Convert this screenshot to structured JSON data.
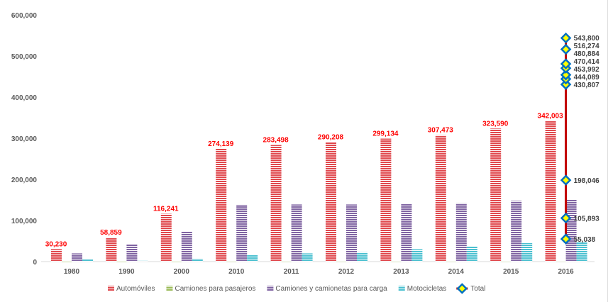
{
  "chart_data": {
    "type": "bar",
    "title": "",
    "xlabel": "",
    "ylabel": "",
    "ylim": [
      0,
      600000
    ],
    "yticks": [
      "0",
      "100,000",
      "200,000",
      "300,000",
      "400,000",
      "500,000",
      "600,000"
    ],
    "ytick_values": [
      0,
      100000,
      200000,
      300000,
      400000,
      500000,
      600000
    ],
    "categories": [
      "1980",
      "1990",
      "2000",
      "2010",
      "2011",
      "2012",
      "2013",
      "2014",
      "2015",
      "2016"
    ],
    "series": [
      {
        "name": "Automóviles",
        "color": "#e0484d",
        "values": [
          30230,
          58859,
          116241,
          274139,
          283498,
          290208,
          299134,
          307473,
          323590,
          342003
        ],
        "labels": [
          "30,230",
          "58,859",
          "116,241",
          "274,139",
          "283,498",
          "290,208",
          "299,134",
          "307,473",
          "323,590",
          "342,003"
        ]
      },
      {
        "name": "Camiones para pasajeros",
        "color": "#9bbb59",
        "values": [
          800,
          900,
          1000,
          1100,
          1100,
          1200,
          1200,
          1300,
          1300,
          1400
        ]
      },
      {
        "name": "Camiones y camionetas para carga",
        "color": "#8064a2",
        "values": [
          20000,
          43000,
          73000,
          138000,
          139000,
          139000,
          141000,
          142000,
          148000,
          150000
        ]
      },
      {
        "name": "Motocicletas",
        "color": "#4bc0d0",
        "values": [
          5000,
          2000,
          7000,
          17000,
          20000,
          23000,
          30000,
          37000,
          45000,
          48000
        ]
      }
    ],
    "total": {
      "name": "Total",
      "line_color": "#c00000",
      "marker_color": "#0070c0",
      "values": [
        55038,
        105893,
        198046,
        430807,
        444089,
        453992,
        470414,
        480884,
        516274,
        543800
      ],
      "labels": [
        "55,038",
        "105,893",
        "198,046",
        "430,807",
        "444,089",
        "453,992",
        "470,414",
        "480,884",
        "516,274",
        "543,800"
      ]
    },
    "grid": false,
    "legend": "bottom"
  }
}
